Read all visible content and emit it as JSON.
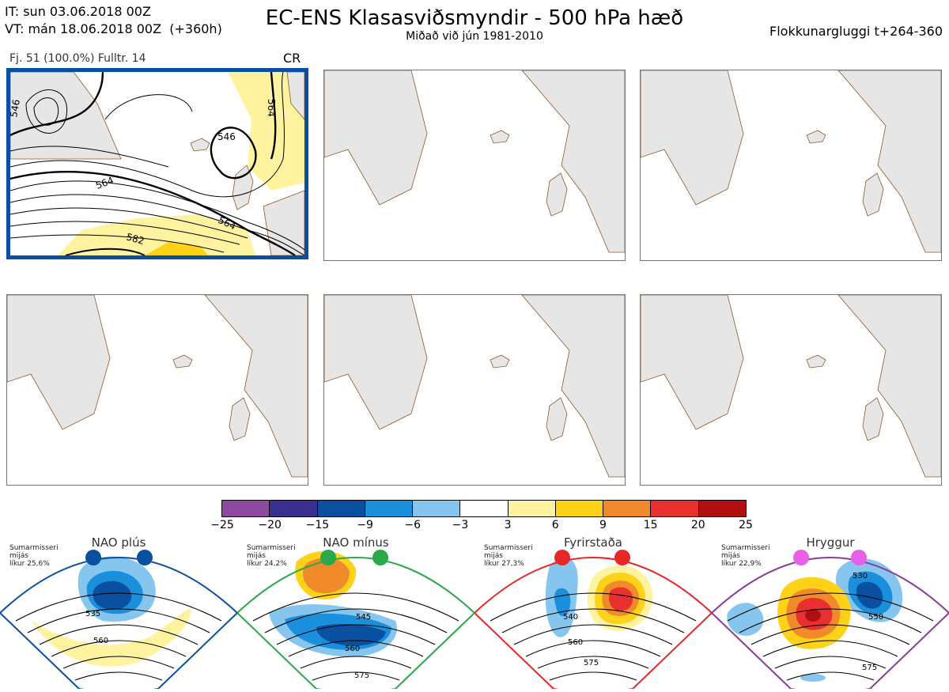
{
  "header": {
    "init_time": "IT: sun 03.06.2018 00Z",
    "valid_time": "VT: mán 18.06.2018 00Z  (+360h)",
    "title": "EC-ENS Klasasviðsmyndir - 500 hPa hæð",
    "subtitle": "Miðað við jún 1981-2010",
    "window": "Flokkunargluggi t+264-360"
  },
  "selected_panel": {
    "info": "Fj. 51 (100.0%)   Fulltr. 14",
    "regime_code": "CR",
    "contour_labels": [
      "546",
      "546",
      "564",
      "564",
      "582",
      "564"
    ]
  },
  "colorbar": {
    "ticks": [
      "−25",
      "−20",
      "−15",
      "−9",
      "−6",
      "−3",
      "3",
      "6",
      "9",
      "15",
      "20",
      "25"
    ],
    "colors": [
      "#8e4aa0",
      "#3a2f8f",
      "#0a50a0",
      "#1a8fdc",
      "#86c6ee",
      "#ffffff",
      "#fff3a0",
      "#ffd21a",
      "#f08a2a",
      "#e83030",
      "#b01010"
    ]
  },
  "regimes": [
    {
      "name": "NAO plús",
      "note": "Sumarmisseri\nmijás\nlíkur 25,6%",
      "color": "#0a50a0",
      "labels": [
        "535",
        "560"
      ]
    },
    {
      "name": "NAO mínus",
      "note": "Sumarmisseri\nmijás\nlíkur 24,2%",
      "color": "#2aa84a",
      "labels": [
        "545",
        "560",
        "575"
      ]
    },
    {
      "name": "Fyrirstaða",
      "note": "Sumarmisseri\nmijás\nlíkur 27,3%",
      "color": "#e82828",
      "labels": [
        "540",
        "560",
        "575"
      ]
    },
    {
      "name": "Hryggur",
      "note": "Sumarmisseri\nmijás\nlíkur 22,9%",
      "color": "#8a3a9a",
      "labels": [
        "530",
        "550",
        "575"
      ]
    }
  ]
}
